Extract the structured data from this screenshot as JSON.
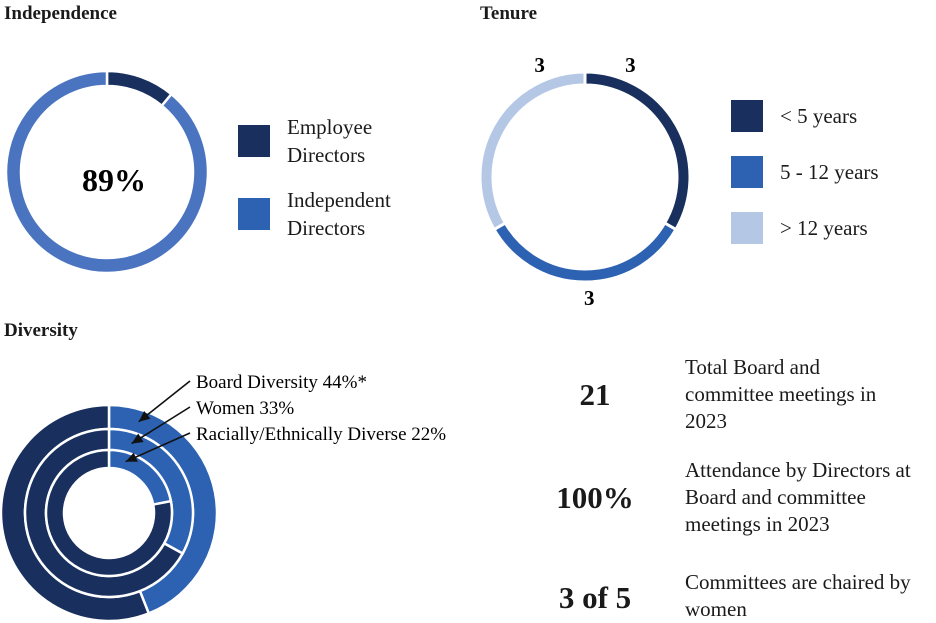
{
  "colors": {
    "dark_navy": "#19305f",
    "mid_blue": "#2d62b3",
    "slate_blue": "#4a73c0",
    "light_blue": "#b4c8e6"
  },
  "independence": {
    "title": "Independence",
    "center_value": "89%",
    "legend": [
      {
        "label_line1": "Employee",
        "label_line2": "Directors",
        "color": "#19305f"
      },
      {
        "label_line1": "Independent",
        "label_line2": "Directors",
        "color": "#2d62b3"
      }
    ]
  },
  "tenure": {
    "title": "Tenure",
    "legend": [
      {
        "label": "< 5 years",
        "color": "#19305f"
      },
      {
        "label": "5 - 12 years",
        "color": "#2d62b3"
      },
      {
        "label": "> 12 years",
        "color": "#b4c8e6"
      }
    ]
  },
  "diversity": {
    "title": "Diversity",
    "annotations": [
      {
        "text": "Board Diversity 44%*"
      },
      {
        "text": "Women 33%"
      },
      {
        "text": "Racially/Ethnically Diverse 22%"
      }
    ]
  },
  "stats": [
    {
      "value": "21",
      "line1": "Total Board and",
      "line2": "committee meetings in",
      "line3": "2023"
    },
    {
      "value": "100%",
      "line1": "Attendance by Directors at",
      "line2": "Board and committee",
      "line3": "meetings in 2023"
    },
    {
      "value": "3 of 5",
      "line1": "Committees are chaired by",
      "line2": "women",
      "line3": ""
    }
  ],
  "chart_data": [
    {
      "type": "pie",
      "title": "Independence",
      "categories": [
        "Employee Directors",
        "Independent Directors"
      ],
      "values": [
        11,
        89
      ],
      "colors": [
        "#19305f",
        "#4a73c0"
      ],
      "center_label": "89%",
      "legend": "right"
    },
    {
      "type": "pie",
      "title": "Tenure",
      "categories": [
        "< 5 years",
        "5 - 12 years",
        "> 12 years"
      ],
      "values": [
        3,
        3,
        3
      ],
      "colors": [
        "#19305f",
        "#2d62b3",
        "#b4c8e6"
      ],
      "legend": "right"
    },
    {
      "type": "pie",
      "title": "Diversity",
      "series": [
        {
          "name": "Board Diversity 44%*",
          "values": [
            44,
            56
          ]
        },
        {
          "name": "Women 33%",
          "values": [
            33,
            67
          ]
        },
        {
          "name": "Racially/Ethnically Diverse 22%",
          "values": [
            22,
            78
          ]
        }
      ],
      "colors": [
        "#2d62b3",
        "#19305f"
      ]
    }
  ]
}
